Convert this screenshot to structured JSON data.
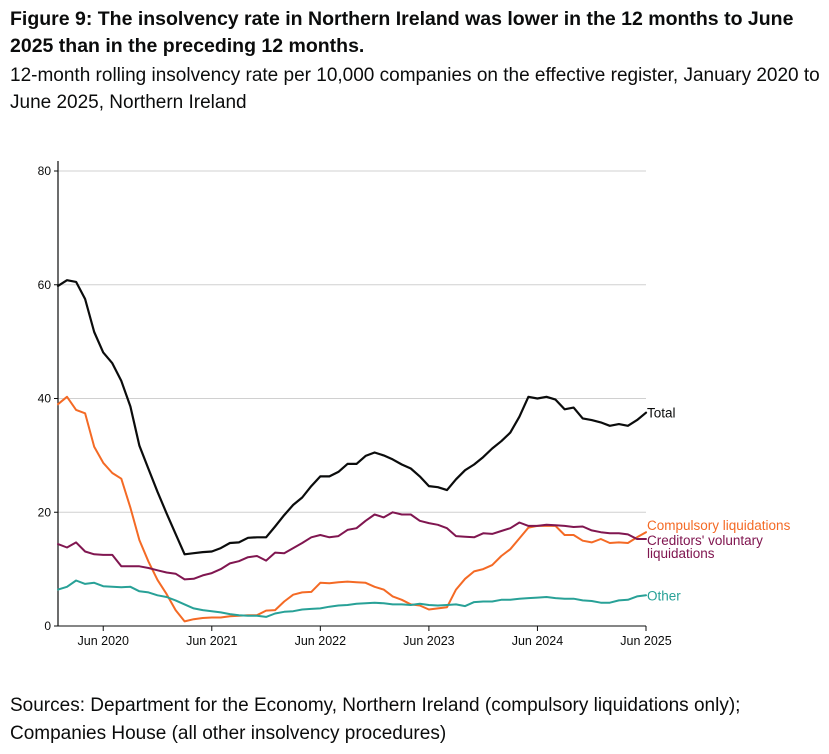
{
  "title": "Figure 9: The insolvency rate in Northern Ireland was lower in the 12 months to June 2025 than in the preceding 12 months.",
  "subtitle": "12-month rolling insolvency rate per 10,000 companies on the effective register, January 2020 to June 2025, Northern Ireland",
  "source": "Sources: Department for the Economy, Northern Ireland (compulsory liquidations only); Companies House (all other insolvency procedures)",
  "chart_data": {
    "type": "line",
    "title": "",
    "xlabel": "",
    "ylabel": "",
    "x_start": "2020-01",
    "x_end": "2025-06",
    "ylim": [
      0,
      80
    ],
    "y_ticks": [
      0,
      20,
      40,
      60,
      80
    ],
    "x_ticks": [
      {
        "label": "Jun 2020",
        "date": "2020-06"
      },
      {
        "label": "Jun 2021",
        "date": "2021-06"
      },
      {
        "label": "Jun 2022",
        "date": "2022-06"
      },
      {
        "label": "Jun 2023",
        "date": "2023-06"
      },
      {
        "label": "Jun 2024",
        "date": "2024-06"
      },
      {
        "label": "Jun 2025",
        "date": "2025-06"
      }
    ],
    "grid": "horizontal",
    "legend": "direct labels at line ends",
    "series": [
      {
        "name": "Total",
        "color": "#0b0c0c",
        "values": [
          59.8,
          60.8,
          60.5,
          57.5,
          51.7,
          48.1,
          46.2,
          43.1,
          38.6,
          31.7,
          27.6,
          23.6,
          19.8,
          16.2,
          12.6,
          12.8,
          13.0,
          13.1,
          13.7,
          14.6,
          14.7,
          15.5,
          15.6,
          15.6,
          17.5,
          19.5,
          21.3,
          22.6,
          24.6,
          26.3,
          26.3,
          27.1,
          28.5,
          28.5,
          29.9,
          30.5,
          30.0,
          29.3,
          28.4,
          27.7,
          26.3,
          24.6,
          24.4,
          23.9,
          25.8,
          27.4,
          28.4,
          29.7,
          31.2,
          32.5,
          34.0,
          36.8,
          40.3,
          40.0,
          40.3,
          39.8,
          38.1,
          38.4,
          36.5,
          36.2,
          35.8,
          35.2,
          35.5,
          35.2,
          36.2,
          37.5
        ]
      },
      {
        "name": "Compulsory liquidations",
        "color": "#f46a25",
        "values": [
          39.0,
          40.3,
          38.0,
          37.4,
          31.5,
          28.7,
          26.9,
          25.9,
          20.8,
          15.1,
          11.3,
          8.1,
          5.6,
          2.8,
          0.8,
          1.2,
          1.4,
          1.5,
          1.5,
          1.7,
          1.8,
          1.9,
          1.9,
          2.7,
          2.8,
          4.3,
          5.5,
          5.9,
          6.0,
          7.6,
          7.5,
          7.7,
          7.8,
          7.7,
          7.6,
          6.9,
          6.4,
          5.2,
          4.6,
          3.8,
          3.6,
          2.9,
          3.1,
          3.3,
          6.4,
          8.3,
          9.6,
          10.0,
          10.7,
          12.3,
          13.5,
          15.4,
          17.3,
          17.6,
          17.6,
          17.6,
          16.0,
          16.0,
          15.0,
          14.7,
          15.3,
          14.6,
          14.7,
          14.6,
          15.6,
          16.5
        ]
      },
      {
        "name": "Creditors' voluntary liquidations",
        "color": "#801650",
        "values": [
          14.4,
          13.8,
          14.7,
          13.1,
          12.6,
          12.5,
          12.5,
          10.5,
          10.5,
          10.5,
          10.2,
          9.8,
          9.4,
          9.2,
          8.2,
          8.3,
          8.9,
          9.3,
          10.0,
          11.0,
          11.4,
          12.1,
          12.3,
          11.5,
          12.9,
          12.8,
          13.7,
          14.6,
          15.6,
          16.0,
          15.6,
          15.8,
          16.9,
          17.2,
          18.5,
          19.6,
          19.1,
          20.0,
          19.6,
          19.6,
          18.5,
          18.1,
          17.8,
          17.2,
          15.8,
          15.7,
          15.6,
          16.3,
          16.2,
          16.7,
          17.2,
          18.2,
          17.6,
          17.6,
          17.8,
          17.7,
          17.6,
          17.4,
          17.5,
          16.8,
          16.5,
          16.3,
          16.3,
          16.1,
          15.3,
          15.3
        ]
      },
      {
        "name": "Other",
        "color": "#28a197",
        "values": [
          6.4,
          6.9,
          8.0,
          7.4,
          7.6,
          7.0,
          6.9,
          6.8,
          6.9,
          6.1,
          5.9,
          5.4,
          5.1,
          4.5,
          3.8,
          3.1,
          2.8,
          2.6,
          2.4,
          2.1,
          1.9,
          1.8,
          1.8,
          1.6,
          2.2,
          2.5,
          2.6,
          2.9,
          3.0,
          3.1,
          3.4,
          3.6,
          3.7,
          3.9,
          4.0,
          4.1,
          4.0,
          3.8,
          3.8,
          3.7,
          3.9,
          3.7,
          3.6,
          3.7,
          3.8,
          3.5,
          4.2,
          4.3,
          4.3,
          4.6,
          4.6,
          4.8,
          4.9,
          5.0,
          5.1,
          4.9,
          4.8,
          4.8,
          4.5,
          4.4,
          4.1,
          4.1,
          4.5,
          4.6,
          5.2,
          5.4
        ]
      }
    ],
    "end_labels": [
      {
        "series": 0,
        "lines": [
          "Total"
        ]
      },
      {
        "series": 1,
        "lines": [
          "Compulsory liquidations"
        ]
      },
      {
        "series": 2,
        "lines": [
          "Creditors' voluntary",
          "liquidations"
        ]
      },
      {
        "series": 3,
        "lines": [
          "Other"
        ]
      }
    ]
  }
}
